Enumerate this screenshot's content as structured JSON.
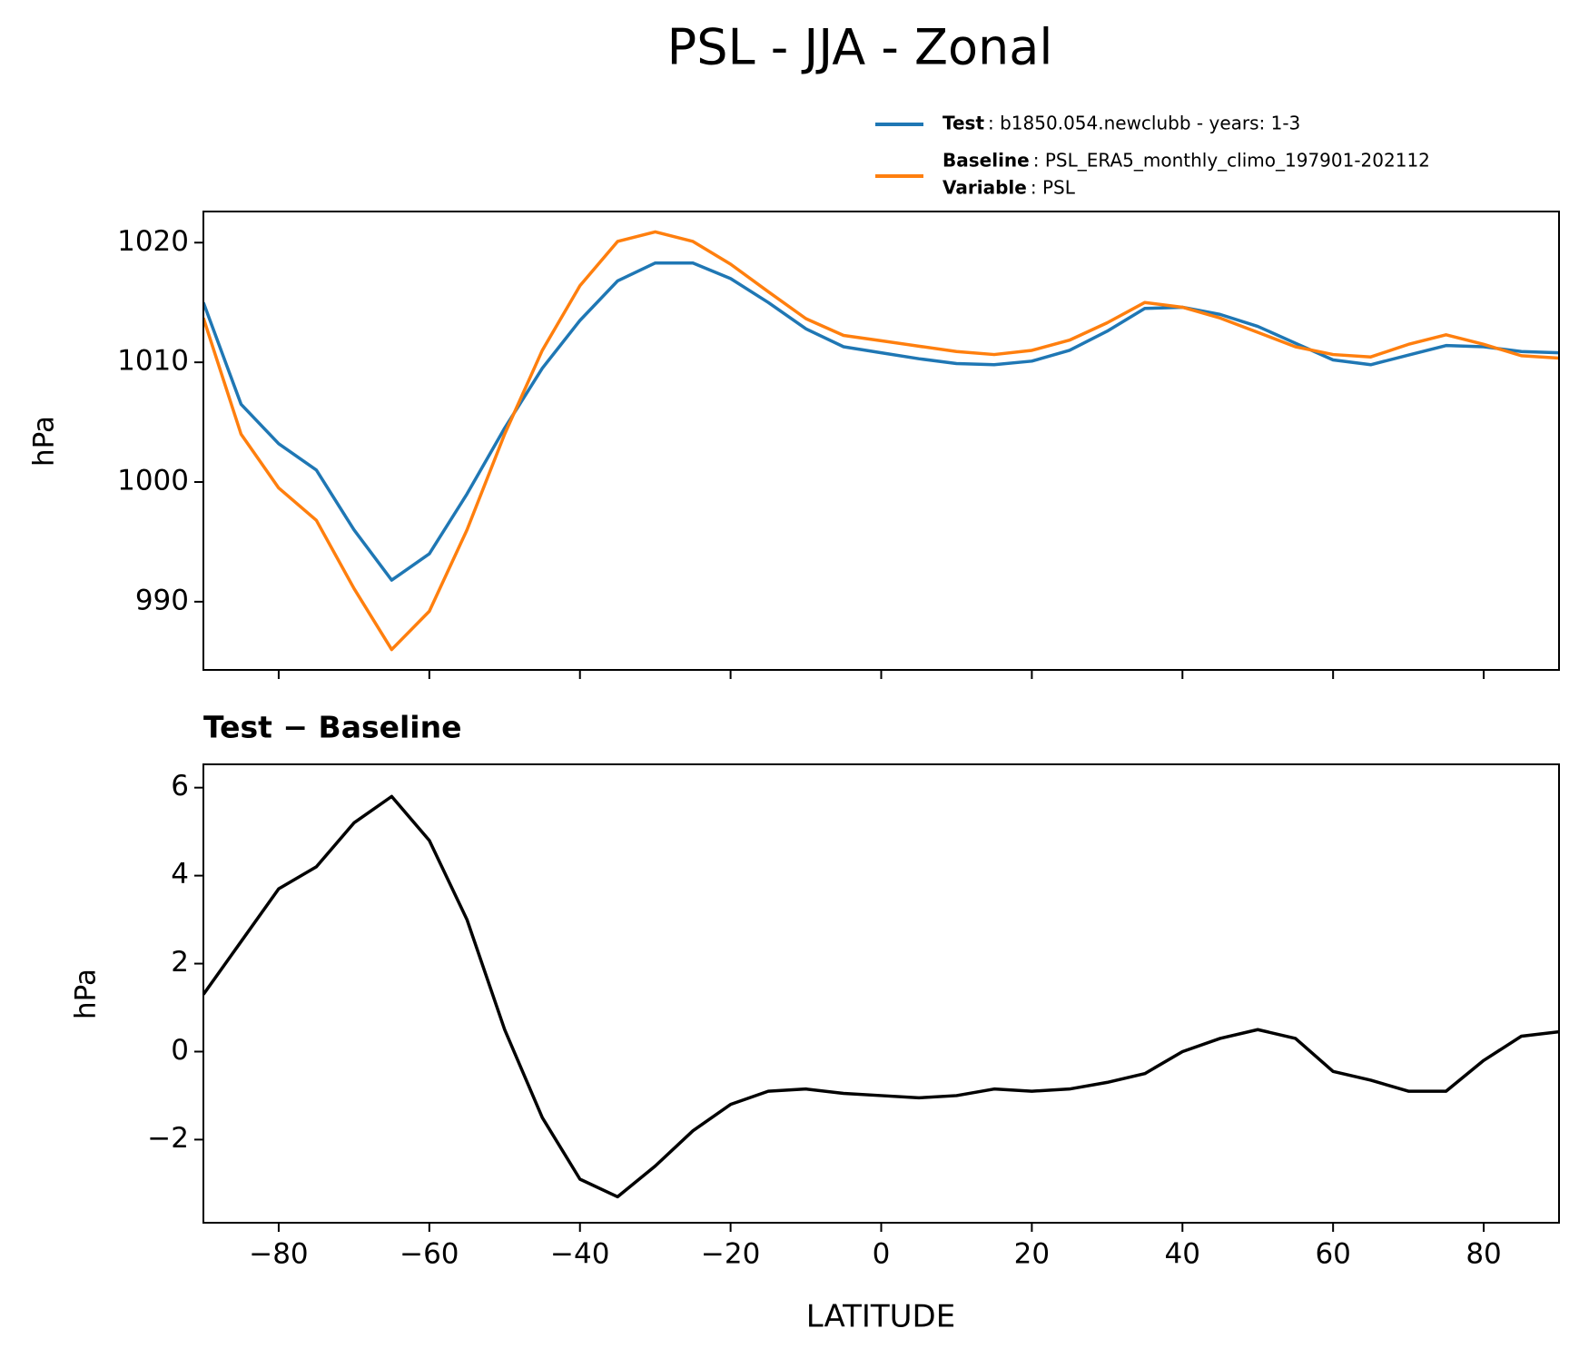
{
  "chart_data": [
    {
      "type": "line",
      "title": "PSL - JJA - Zonal",
      "ylabel": "hPa",
      "x": [
        -90,
        -85,
        -80,
        -75,
        -70,
        -65,
        -60,
        -55,
        -50,
        -45,
        -40,
        -35,
        -30,
        -25,
        -20,
        -15,
        -10,
        -5,
        0,
        5,
        10,
        15,
        20,
        25,
        30,
        35,
        40,
        45,
        50,
        55,
        60,
        65,
        70,
        75,
        80,
        85,
        90
      ],
      "series": [
        {
          "name": "Test",
          "legend_text": ": b1850.054.newclubb - years: 1-3",
          "color": "#1f77b4",
          "values": [
            1015,
            1006.5,
            1003.2,
            1001,
            996,
            991.8,
            994,
            999,
            1004.5,
            1009.5,
            1013.5,
            1016.8,
            1018.3,
            1018.3,
            1017,
            1015,
            1012.8,
            1011.3,
            1010.8,
            1010.3,
            1009.9,
            1009.8,
            1010.1,
            1011,
            1012.6,
            1014.5,
            1014.6,
            1014,
            1013,
            1011.6,
            1010.2,
            1009.8,
            1010.6,
            1011.4,
            1011.3,
            1010.9,
            1010.8
          ]
        },
        {
          "name": "Baseline",
          "legend_text": ": PSL_ERA5_monthly_climo_197901-202112",
          "color": "#ff7f0e",
          "values": [
            1013.7,
            1004,
            999.5,
            996.8,
            991.1,
            986,
            989.2,
            996,
            1004,
            1011,
            1016.4,
            1020.1,
            1020.9,
            1020.1,
            1018.2,
            1015.9,
            1013.65,
            1012.25,
            1011.8,
            1011.35,
            1010.9,
            1010.65,
            1011,
            1011.85,
            1013.3,
            1015,
            1014.6,
            1013.7,
            1012.5,
            1011.3,
            1010.65,
            1010.45,
            1011.5,
            1012.3,
            1011.5,
            1010.55,
            1010.35
          ]
        }
      ],
      "legend_extra": {
        "name": "Variable",
        "text": ": PSL"
      },
      "xlim": [
        -90,
        90
      ],
      "xticks": [
        -80,
        -60,
        -40,
        -20,
        0,
        20,
        40,
        60,
        80
      ],
      "ylim": [
        984.3,
        1022.6
      ],
      "yticks": [
        990,
        1000,
        1010,
        1020
      ]
    },
    {
      "type": "line",
      "title": "Test − Baseline",
      "ylabel": "hPa",
      "xlabel": "LATITUDE",
      "x": [
        -90,
        -85,
        -80,
        -75,
        -70,
        -65,
        -60,
        -55,
        -50,
        -45,
        -40,
        -35,
        -30,
        -25,
        -20,
        -15,
        -10,
        -5,
        0,
        5,
        10,
        15,
        20,
        25,
        30,
        35,
        40,
        45,
        50,
        55,
        60,
        65,
        70,
        75,
        80,
        85,
        90
      ],
      "series": [
        {
          "color": "#000000",
          "values": [
            1.3,
            2.5,
            3.7,
            4.2,
            5.2,
            5.8,
            4.8,
            3,
            0.5,
            -1.5,
            -2.9,
            -3.3,
            -2.6,
            -1.8,
            -1.2,
            -0.9,
            -0.85,
            -0.95,
            -1.0,
            -1.05,
            -1.0,
            -0.85,
            -0.9,
            -0.85,
            -0.7,
            -0.5,
            0,
            0.3,
            0.5,
            0.3,
            -0.45,
            -0.65,
            -0.9,
            -0.9,
            -0.2,
            0.35,
            0.45
          ]
        }
      ],
      "xlim": [
        -90,
        90
      ],
      "xticks": [
        {
          "value": -80,
          "label": "−80"
        },
        {
          "value": -60,
          "label": "−60"
        },
        {
          "value": -40,
          "label": "−40"
        },
        {
          "value": -20,
          "label": "−20"
        },
        0,
        20,
        40,
        60,
        80
      ],
      "ylim": [
        -3.89,
        6.53
      ],
      "yticks": [
        {
          "value": -2,
          "label": "−2"
        },
        0,
        2,
        4,
        6
      ]
    }
  ]
}
